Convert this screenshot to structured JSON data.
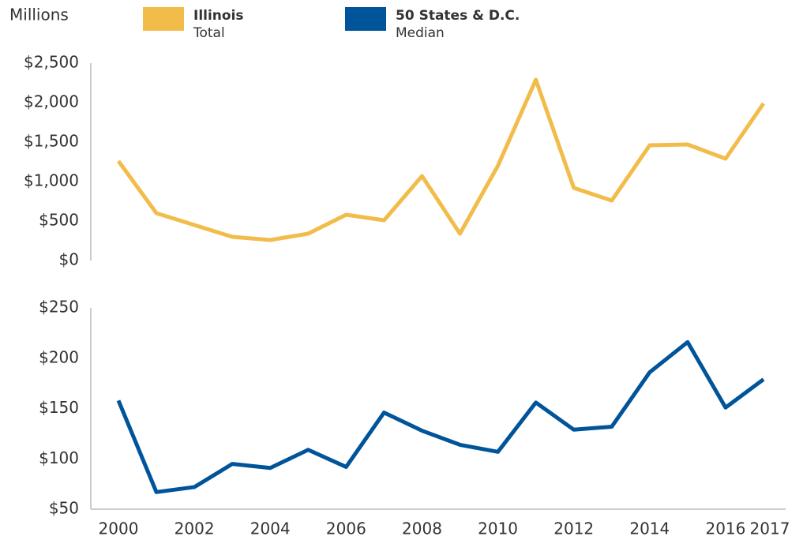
{
  "chart_data": [
    {
      "type": "line",
      "y_label": "Millions",
      "x": [
        2000,
        2001,
        2002,
        2003,
        2004,
        2005,
        2006,
        2007,
        2008,
        2009,
        2010,
        2011,
        2012,
        2013,
        2014,
        2015,
        2016,
        2017
      ],
      "xlim": [
        2000,
        2017
      ],
      "series": [
        {
          "name": "Illinois",
          "sublabel": "Total",
          "color": "#f2bc4a",
          "values": [
            1260,
            600,
            450,
            300,
            260,
            340,
            580,
            510,
            1070,
            340,
            1200,
            2290,
            920,
            760,
            1460,
            1470,
            1290,
            1990
          ]
        }
      ],
      "ylim": [
        0,
        2500
      ],
      "yticks": [
        {
          "value": 0,
          "label": "$0"
        },
        {
          "value": 500,
          "label": "$500"
        },
        {
          "value": 1000,
          "label": "$1,000"
        },
        {
          "value": 1500,
          "label": "$1,500"
        },
        {
          "value": 2000,
          "label": "$2,000"
        },
        {
          "value": 2500,
          "label": "$2,500"
        }
      ]
    },
    {
      "type": "line",
      "x": [
        2000,
        2001,
        2002,
        2003,
        2004,
        2005,
        2006,
        2007,
        2008,
        2009,
        2010,
        2011,
        2012,
        2013,
        2014,
        2015,
        2016,
        2017
      ],
      "xlim": [
        2000,
        2017
      ],
      "xticks": [
        2000,
        2002,
        2004,
        2006,
        2008,
        2010,
        2012,
        2014,
        2016,
        2017
      ],
      "series": [
        {
          "name": "50 States & D.C.",
          "sublabel": "Median",
          "color": "#005499",
          "values": [
            158,
            67,
            72,
            95,
            91,
            109,
            92,
            146,
            128,
            114,
            107,
            156,
            129,
            132,
            186,
            216,
            151,
            179
          ]
        }
      ],
      "ylim": [
        50,
        250
      ],
      "yticks": [
        {
          "value": 50,
          "label": "$50"
        },
        {
          "value": 100,
          "label": "$100"
        },
        {
          "value": 150,
          "label": "$150"
        },
        {
          "value": 200,
          "label": "$200"
        },
        {
          "value": 250,
          "label": "$250"
        }
      ]
    }
  ]
}
